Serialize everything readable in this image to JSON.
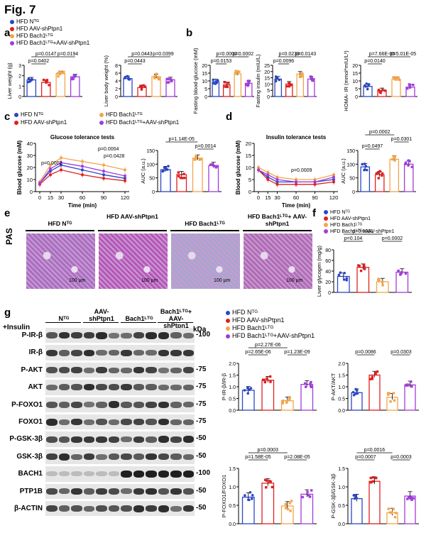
{
  "figure_title": "Fig. 7",
  "groups": [
    {
      "name": "HFD Nᵀᴳ",
      "color": "#2846c8"
    },
    {
      "name": "HFD AAV-shPtpn1",
      "color": "#e01f1f"
    },
    {
      "name": "HFD Bach1ᴸᵀᴳ",
      "color": "#f2a54a"
    },
    {
      "name": "HFD Bach1ᴸᵀᴳ+AAV-shPtpn1",
      "color": "#a03cdc"
    }
  ],
  "panel_labels": {
    "a": "a",
    "b": "b",
    "c": "c",
    "d": "d",
    "e": "e",
    "f": "f",
    "g": "g"
  },
  "panel_a": {
    "liver": {
      "ylabel": "Liver weight (g)",
      "yticks": [
        "0",
        "1",
        "2",
        "3"
      ],
      "pvals": [
        "p=0.0147",
        "p=0.0194",
        "p=0.0402"
      ]
    },
    "ratio": {
      "ylabel": "Liver body weight (%)",
      "yticks": [
        "0",
        "2",
        "4",
        "6",
        "8"
      ],
      "pvals": [
        "p=0.0443",
        "p=0.0399",
        "p=0.0443"
      ]
    }
  },
  "panel_b": {
    "glucose": {
      "ylabel": "Fasting blood-glucose (mM)",
      "yticks": [
        "0",
        "5",
        "10",
        "15",
        "20"
      ],
      "pvals": [
        "p=0.0002",
        "p=0.0002",
        "p=0.0153"
      ]
    },
    "insulin": {
      "ylabel": "Fasting insulin (mIU/L)",
      "yticks": [
        "0",
        "5",
        "10",
        "15",
        "20",
        "25"
      ],
      "pvals": [
        "p=0.0239",
        "p=0.0143",
        "p=0.0096"
      ]
    },
    "homa": {
      "ylabel": "HOMA- IR (mmol*mIU/L²)",
      "yticks": [
        "0",
        "5",
        "10",
        "15",
        "20"
      ],
      "pvals": [
        "p=7.66E-05",
        "p=5.01E-05",
        "p=0.0140"
      ]
    }
  },
  "panel_c": {
    "title": "Glucose tolerance tests",
    "xlabel": "Time (min)",
    "ylabel": "Blood glucose (mM)",
    "xticks": [
      "0",
      "15",
      "30",
      "60",
      "90",
      "120"
    ],
    "yticks": [
      "0",
      "10",
      "20",
      "30",
      "40"
    ],
    "pvals": [
      "p=0.0002",
      "p=0.0004",
      "p=0.0428"
    ],
    "auc": {
      "ylabel": "AUC (a.u.)",
      "yticks": [
        "0",
        "50",
        "100",
        "150"
      ],
      "pvals": [
        "p=1.14E-05",
        "p=0.0014"
      ]
    }
  },
  "panel_d": {
    "title": "Insulin tolerance tests",
    "xlabel": "Time (min)",
    "ylabel": "Blood glucose (mM)",
    "xticks": [
      "0",
      "15",
      "30",
      "60",
      "90",
      "120"
    ],
    "yticks": [
      "0",
      "5",
      "10",
      "15",
      "20"
    ],
    "pvals": [
      "p=0.0009"
    ],
    "auc": {
      "ylabel": "AUC (a.u.)",
      "yticks": [
        "0",
        "50",
        "100",
        "150"
      ],
      "pvals": [
        "p=0.0002",
        "p=0.0301",
        "p=0.0497"
      ]
    }
  },
  "panel_e": {
    "headers": [
      "HFD Nᵀᴳ",
      "HFD AAV-shPtpn1",
      "HFD Bach1ᴸᵀᴳ",
      "HFD Bach1ᴸᵀᴳ+ AAV-shPtpn1"
    ],
    "row_label": "PAS",
    "scale": "100 μm"
  },
  "panel_f": {
    "ylabel": "Liver glycogen (mg/g)",
    "yticks": [
      "0",
      "20",
      "40",
      "60",
      "80"
    ],
    "pvals": [
      "p=0.0061",
      "p=0.104",
      "p=0.0002"
    ]
  },
  "panel_g": {
    "insulin_label": "+Insulin",
    "lane_headers": [
      "Nᵀᴳ",
      "AAV-shPtpn1",
      "Bach1ᴸᵀᴳ",
      "Bach1ᴸᵀᴳ+ AAV-shPtpn1"
    ],
    "insulin_signs": [
      "-",
      "+",
      "+",
      "-",
      "+",
      "+",
      "-",
      "+",
      "+",
      "-",
      "+",
      "+"
    ],
    "kda": "kDa",
    "rows": [
      {
        "label": "P-IR-β",
        "mw": "100"
      },
      {
        "label": "IR-β",
        "mw": ""
      },
      {
        "label": "P-AKT",
        "mw": "75"
      },
      {
        "label": "AKT",
        "mw": "75"
      },
      {
        "label": "P-FOXO1",
        "mw": "75"
      },
      {
        "label": "FOXO1",
        "mw": "75"
      },
      {
        "label": "P-GSK-3β",
        "mw": "50"
      },
      {
        "label": "GSK-3β",
        "mw": "50"
      },
      {
        "label": "BACH1",
        "mw": "100"
      },
      {
        "label": "PTP1B",
        "mw": "50"
      },
      {
        "label": "β-ACTIN",
        "mw": "50"
      }
    ],
    "quant": [
      {
        "ylabel": "P-IR-β/IR-β",
        "yticks": [
          "0.0",
          "0.5",
          "1.0",
          "1.5",
          "2.0"
        ],
        "pvals": [
          "p=2.27E-06",
          "p=2.65E-06",
          "p=1.23E-09"
        ]
      },
      {
        "ylabel": "P-AKT/AKT",
        "yticks": [
          "0.0",
          "0.5",
          "1.0",
          "1.5",
          "2.0"
        ],
        "pvals": [
          "p=0.0086",
          "p=0.0303"
        ]
      },
      {
        "ylabel": "P-FOXO1/FOXO1",
        "yticks": [
          "0.0",
          "0.5",
          "1.0",
          "1.5"
        ],
        "pvals": [
          "p=0.0003",
          "p=1.58E-05",
          "p=2.08E-05"
        ]
      },
      {
        "ylabel": "P-GSK-3β/GSK-3β",
        "yticks": [
          "0.0",
          "0.5",
          "1.0",
          "1.5"
        ],
        "pvals": [
          "p=0.0016",
          "p=0.0007",
          "p=0.0003"
        ]
      }
    ]
  },
  "chart_data": [
    {
      "type": "bar",
      "title": "",
      "ylabel": "Liver weight (g)",
      "categories": [
        "HFD NTG",
        "HFD AAV-shPtpn1",
        "HFD Bach1LTG",
        "HFD Bach1LTG+AAV-shPtpn1"
      ],
      "values": [
        1.6,
        1.35,
        2.2,
        1.9
      ],
      "ylim": [
        0,
        3
      ]
    },
    {
      "type": "bar",
      "title": "",
      "ylabel": "Liver body weight (%)",
      "categories": [
        "HFD NTG",
        "HFD AAV-shPtpn1",
        "HFD Bach1LTG",
        "HFD Bach1LTG+AAV-shPtpn1"
      ],
      "values": [
        4.6,
        2.3,
        5.1,
        4.3
      ],
      "ylim": [
        0,
        8
      ]
    },
    {
      "type": "bar",
      "title": "",
      "ylabel": "Fasting blood-glucose (mM)",
      "categories": [
        "HFD NTG",
        "HFD AAV-shPtpn1",
        "HFD Bach1LTG",
        "HFD Bach1LTG+AAV-shPtpn1"
      ],
      "values": [
        9.5,
        7.5,
        14.5,
        8.5
      ],
      "ylim": [
        0,
        20
      ]
    },
    {
      "type": "bar",
      "title": "",
      "ylabel": "Fasting insulin (mIU/L)",
      "categories": [
        "HFD NTG",
        "HFD AAV-shPtpn1",
        "HFD Bach1LTG",
        "HFD Bach1LTG+AAV-shPtpn1"
      ],
      "values": [
        14,
        10,
        18,
        14
      ],
      "ylim": [
        0,
        25
      ]
    },
    {
      "type": "bar",
      "title": "",
      "ylabel": "HOMA- IR (mmol*mIU/L2)",
      "categories": [
        "HFD NTG",
        "HFD AAV-shPtpn1",
        "HFD Bach1LTG",
        "HFD Bach1LTG+AAV-shPtpn1"
      ],
      "values": [
        6.5,
        3.8,
        11,
        6
      ],
      "ylim": [
        0,
        20
      ]
    },
    {
      "type": "line",
      "title": "Glucose tolerance tests",
      "xlabel": "Time (min)",
      "ylabel": "Blood glucose (mM)",
      "x": [
        0,
        15,
        30,
        60,
        90,
        120
      ],
      "ylim": [
        0,
        40
      ],
      "series": [
        {
          "name": "HFD NTG",
          "values": [
            7,
            17,
            22,
            18,
            14,
            11
          ]
        },
        {
          "name": "HFD AAV-shPtpn1",
          "values": [
            6,
            14,
            18,
            14,
            11,
            9
          ]
        },
        {
          "name": "HFD Bach1LTG",
          "values": [
            8,
            22,
            28,
            25,
            22,
            18
          ]
        },
        {
          "name": "HFD Bach1LTG+AAV-shPtpn1",
          "values": [
            7,
            19,
            24,
            21,
            17,
            13
          ]
        }
      ]
    },
    {
      "type": "bar",
      "title": "",
      "ylabel": "AUC (a.u.)",
      "categories": [
        "HFD NTG",
        "HFD AAV-shPtpn1",
        "HFD Bach1LTG",
        "HFD Bach1LTG+AAV-shPtpn1"
      ],
      "values": [
        80,
        62,
        122,
        95
      ],
      "ylim": [
        0,
        150
      ]
    },
    {
      "type": "line",
      "title": "Insulin tolerance tests",
      "xlabel": "Time (min)",
      "ylabel": "Blood glucose (mM)",
      "x": [
        0,
        15,
        30,
        60,
        90,
        120
      ],
      "ylim": [
        0,
        20
      ],
      "series": [
        {
          "name": "HFD NTG",
          "values": [
            9,
            6,
            4,
            4,
            4,
            5
          ]
        },
        {
          "name": "HFD AAV-shPtpn1",
          "values": [
            9,
            5,
            3,
            3,
            3,
            4
          ]
        },
        {
          "name": "HFD Bach1LTG",
          "values": [
            10,
            8,
            6,
            5,
            5,
            7
          ]
        },
        {
          "name": "HFD Bach1LTG+AAV-shPtpn1",
          "values": [
            9,
            7,
            5,
            4,
            4,
            6
          ]
        }
      ]
    },
    {
      "type": "bar",
      "title": "",
      "ylabel": "AUC (a.u.)",
      "categories": [
        "HFD NTG",
        "HFD AAV-shPtpn1",
        "HFD Bach1LTG",
        "HFD Bach1LTG+AAV-shPtpn1"
      ],
      "values": [
        90,
        62,
        118,
        100
      ],
      "ylim": [
        0,
        150
      ]
    },
    {
      "type": "bar",
      "title": "",
      "ylabel": "Liver glycogen (mg/g)",
      "categories": [
        "HFD NTG",
        "HFD AAV-shPtpn1",
        "HFD Bach1LTG",
        "HFD Bach1LTG+AAV-shPtpn1"
      ],
      "values": [
        30,
        47,
        20,
        38
      ],
      "ylim": [
        0,
        80
      ]
    },
    {
      "type": "bar",
      "title": "",
      "ylabel": "P-IR-β/IR-β",
      "categories": [
        "HFD NTG",
        "HFD AAV-shPtpn1",
        "HFD Bach1LTG",
        "HFD Bach1LTG+AAV-shPtpn1"
      ],
      "values": [
        0.85,
        1.28,
        0.4,
        1.1
      ],
      "ylim": [
        0,
        2
      ]
    },
    {
      "type": "bar",
      "title": "",
      "ylabel": "P-AKT/AKT",
      "categories": [
        "HFD NTG",
        "HFD AAV-shPtpn1",
        "HFD Bach1LTG",
        "HFD Bach1LTG+AAV-shPtpn1"
      ],
      "values": [
        0.75,
        1.5,
        0.55,
        1.08
      ],
      "ylim": [
        0,
        2
      ]
    },
    {
      "type": "bar",
      "title": "",
      "ylabel": "P-FOXO1/FOXO1",
      "categories": [
        "HFD NTG",
        "HFD AAV-shPtpn1",
        "HFD Bach1LTG",
        "HFD Bach1LTG+AAV-shPtpn1"
      ],
      "values": [
        0.72,
        1.1,
        0.48,
        0.8
      ],
      "ylim": [
        0,
        1.5
      ]
    },
    {
      "type": "bar",
      "title": "",
      "ylabel": "P-GSK-3β/GSK-3β",
      "categories": [
        "HFD NTG",
        "HFD AAV-shPtpn1",
        "HFD Bach1LTG",
        "HFD Bach1LTG+AAV-shPtpn1"
      ],
      "values": [
        0.68,
        1.15,
        0.3,
        0.75
      ],
      "ylim": [
        0,
        1.5
      ]
    }
  ]
}
